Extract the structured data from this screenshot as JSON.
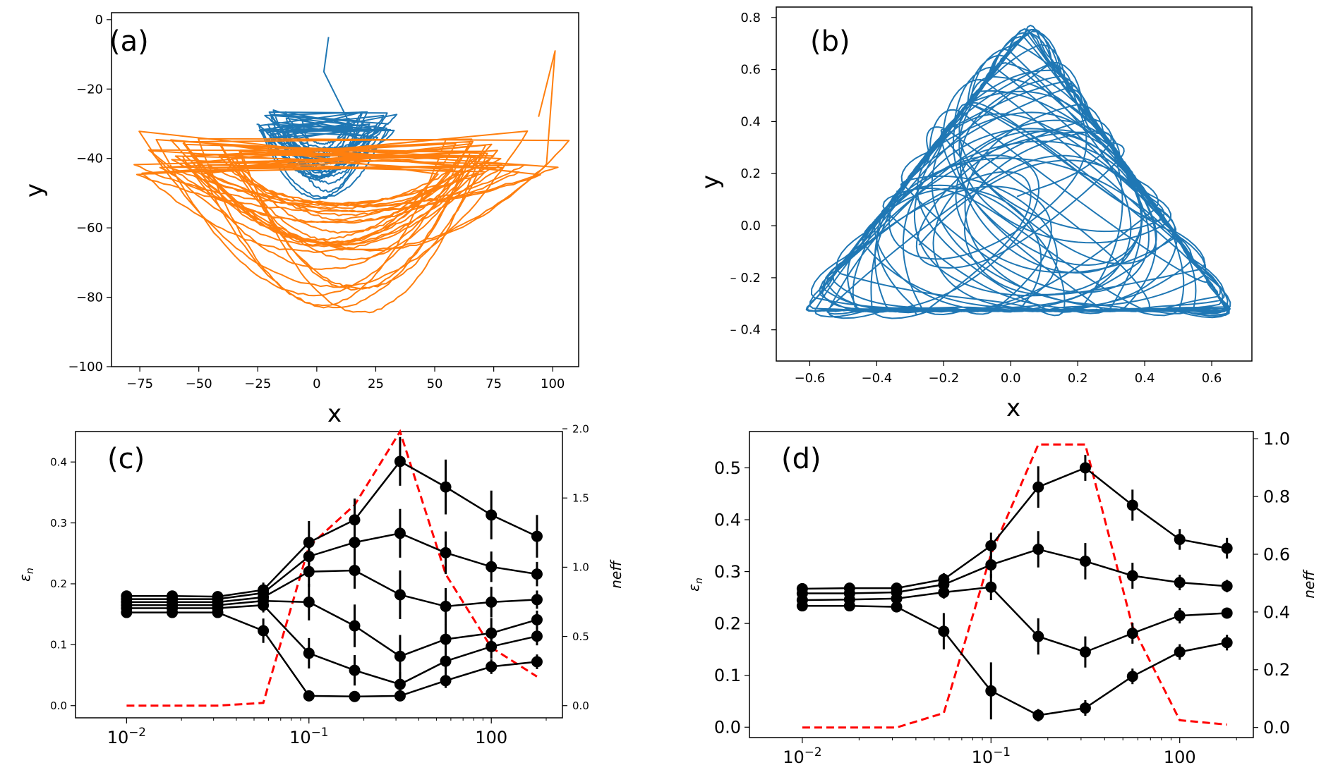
{
  "chart_data": [
    {
      "panel": "(a)",
      "type": "line",
      "xlabel": "x",
      "ylabel": "y",
      "xlim": [
        -87,
        111
      ],
      "ylim": [
        -100,
        2
      ],
      "xticks": [
        -75,
        -50,
        -25,
        0,
        25,
        50,
        75,
        100
      ],
      "yticks": [
        0,
        -20,
        -40,
        -60,
        -80,
        -100
      ],
      "xtick_labels": [
        "−75",
        "−50",
        "−25",
        "0",
        "25",
        "50",
        "75",
        "100"
      ],
      "ytick_labels": [
        "0",
        "−20",
        "−40",
        "−60",
        "−80",
        "−100"
      ],
      "series": [
        {
          "color": "#1f77b4",
          "center": [
            2,
            -33
          ],
          "x_half_width": [
            28,
            10
          ],
          "y_half_height": [
            8,
            22
          ],
          "loops": 26,
          "x_range": [
            -30,
            33
          ],
          "y_range": [
            -52,
            -5
          ]
        },
        {
          "color": "#ff7f0e",
          "center": [
            10,
            -46
          ],
          "x_half_width": [
            45,
            88
          ],
          "y_half_height": [
            10,
            48
          ],
          "loops": 32,
          "x_range": [
            -78,
            101
          ],
          "y_range": [
            -96,
            -9
          ]
        }
      ]
    },
    {
      "panel": "(b)",
      "type": "line",
      "xlabel": "x",
      "ylabel": "y",
      "xlim": [
        -0.7,
        0.72
      ],
      "ylim": [
        -0.52,
        0.84
      ],
      "xticks": [
        -0.6,
        -0.4,
        -0.2,
        0.0,
        0.2,
        0.4,
        0.6
      ],
      "yticks": [
        0.8,
        0.6,
        0.4,
        0.2,
        0.0,
        -0.2,
        -0.4
      ],
      "xtick_labels": [
        "−0.6",
        "−0.4",
        "−0.2",
        "0.0",
        "0.2",
        "0.4",
        "0.6"
      ],
      "ytick_labels": [
        "0.8",
        "0.6",
        "0.4",
        "0.2",
        "0.0",
        "– 0.2",
        "– 0.4"
      ],
      "series": [
        {
          "color": "#1f77b4",
          "shape": "triangle",
          "x_range": [
            -0.65,
            0.7
          ],
          "y_range": [
            -0.49,
            0.81
          ]
        }
      ]
    },
    {
      "panel": "(c)",
      "type": "line",
      "xscale": "log",
      "ylabel": "εn",
      "y2label": "neff",
      "ylim": [
        -0.02,
        0.45
      ],
      "y2lim": [
        -0.088,
        1.98
      ],
      "yticks": [
        0.0,
        0.1,
        0.2,
        0.3,
        0.4
      ],
      "ytick_labels": [
        "0.0",
        "0.1",
        "0.2",
        "0.3",
        "0.4"
      ],
      "y2ticks": [
        0.0,
        0.5,
        1.0,
        1.5,
        2.0
      ],
      "y2tick_labels": [
        "0.0",
        "0.5",
        "1.0",
        "1.5",
        "2.0"
      ],
      "xtick_labels": [
        "10−2",
        "10−1",
        "100"
      ],
      "x": [
        0.01,
        0.0178,
        0.0316,
        0.0562,
        0.1,
        0.178,
        0.316,
        0.562,
        1.0,
        1.78
      ],
      "series": [
        {
          "values": [
            0.18,
            0.18,
            0.179,
            0.19,
            0.268,
            0.305,
            0.401,
            0.359,
            0.313,
            0.278
          ],
          "yerr": [
            0.006,
            0.006,
            0.006,
            0.012,
            0.035,
            0.035,
            0.04,
            0.045,
            0.04,
            0.035
          ]
        },
        {
          "values": [
            0.175,
            0.175,
            0.175,
            0.185,
            0.245,
            0.268,
            0.283,
            0.251,
            0.228,
            0.216
          ],
          "yerr": [
            0.006,
            0.006,
            0.006,
            0.012,
            0.03,
            0.035,
            0.04,
            0.035,
            0.025,
            0.02
          ]
        },
        {
          "values": [
            0.17,
            0.17,
            0.17,
            0.178,
            0.22,
            0.222,
            0.182,
            0.163,
            0.17,
            0.174
          ],
          "yerr": [
            0.006,
            0.006,
            0.006,
            0.012,
            0.025,
            0.03,
            0.04,
            0.03,
            0.025,
            0.015
          ]
        },
        {
          "values": [
            0.165,
            0.165,
            0.165,
            0.172,
            0.17,
            0.131,
            0.081,
            0.109,
            0.119,
            0.141
          ],
          "yerr": [
            0.006,
            0.006,
            0.006,
            0.012,
            0.03,
            0.035,
            0.035,
            0.025,
            0.025,
            0.015
          ]
        },
        {
          "values": [
            0.16,
            0.16,
            0.16,
            0.165,
            0.086,
            0.058,
            0.035,
            0.073,
            0.097,
            0.114
          ],
          "yerr": [
            0.006,
            0.006,
            0.006,
            0.012,
            0.025,
            0.025,
            0.02,
            0.02,
            0.02,
            0.015
          ]
        },
        {
          "values": [
            0.153,
            0.153,
            0.153,
            0.123,
            0.016,
            0.015,
            0.016,
            0.041,
            0.064,
            0.072
          ],
          "yerr": [
            0.006,
            0.006,
            0.006,
            0.02,
            0.006,
            0.006,
            0.008,
            0.012,
            0.012,
            0.012
          ]
        }
      ],
      "neff": {
        "color": "#ff0000",
        "x": [
          0.01,
          0.0178,
          0.0316,
          0.0562,
          0.1,
          0.178,
          0.316,
          0.562,
          1.0,
          1.78
        ],
        "values": [
          0.0,
          0.0,
          0.0,
          0.02,
          1.15,
          1.45,
          1.98,
          0.95,
          0.42,
          0.21
        ]
      }
    },
    {
      "panel": "(d)",
      "type": "line",
      "xscale": "log",
      "ylabel": "εn",
      "y2label": "neff",
      "ylim": [
        -0.02,
        0.57
      ],
      "y2lim": [
        -0.035,
        1.025
      ],
      "yticks": [
        0.0,
        0.1,
        0.2,
        0.3,
        0.4,
        0.5
      ],
      "ytick_labels": [
        "0.0",
        "0.1",
        "0.2",
        "0.3",
        "0.4",
        "0.5"
      ],
      "y2ticks": [
        0.0,
        0.2,
        0.4,
        0.6,
        0.8,
        1.0
      ],
      "y2tick_labels": [
        "0.0",
        "0.2",
        "0.4",
        "0.6",
        "0.8",
        "1.0"
      ],
      "xtick_labels": [
        "10−2",
        "10−1",
        "100"
      ],
      "x": [
        0.01,
        0.0178,
        0.0316,
        0.0562,
        0.1,
        0.178,
        0.316,
        0.562,
        1.0,
        1.78
      ],
      "series": [
        {
          "values": [
            0.267,
            0.268,
            0.268,
            0.285,
            0.35,
            0.463,
            0.5,
            0.428,
            0.362,
            0.345
          ],
          "yerr": [
            0.006,
            0.006,
            0.006,
            0.012,
            0.025,
            0.04,
            0.025,
            0.03,
            0.02,
            0.02
          ]
        },
        {
          "values": [
            0.258,
            0.258,
            0.26,
            0.275,
            0.313,
            0.343,
            0.32,
            0.292,
            0.279,
            0.272
          ],
          "yerr": [
            0.006,
            0.006,
            0.006,
            0.012,
            0.025,
            0.035,
            0.035,
            0.025,
            0.015,
            0.012
          ]
        },
        {
          "values": [
            0.245,
            0.246,
            0.248,
            0.26,
            0.27,
            0.175,
            0.145,
            0.181,
            0.215,
            0.22
          ],
          "yerr": [
            0.006,
            0.006,
            0.006,
            0.012,
            0.025,
            0.035,
            0.03,
            0.02,
            0.015,
            0.01
          ]
        },
        {
          "values": [
            0.234,
            0.234,
            0.232,
            0.185,
            0.07,
            0.023,
            0.037,
            0.098,
            0.145,
            0.163
          ],
          "yerr": [
            0.006,
            0.006,
            0.006,
            0.035,
            0.055,
            0.012,
            0.015,
            0.015,
            0.015,
            0.015
          ]
        }
      ],
      "neff": {
        "color": "#ff0000",
        "x": [
          0.01,
          0.0178,
          0.0316,
          0.0562,
          0.1,
          0.178,
          0.316,
          0.562,
          1.0,
          1.78
        ],
        "values": [
          0.0,
          0.0,
          0.0,
          0.05,
          0.6,
          0.98,
          0.98,
          0.35,
          0.025,
          0.01
        ]
      }
    }
  ]
}
